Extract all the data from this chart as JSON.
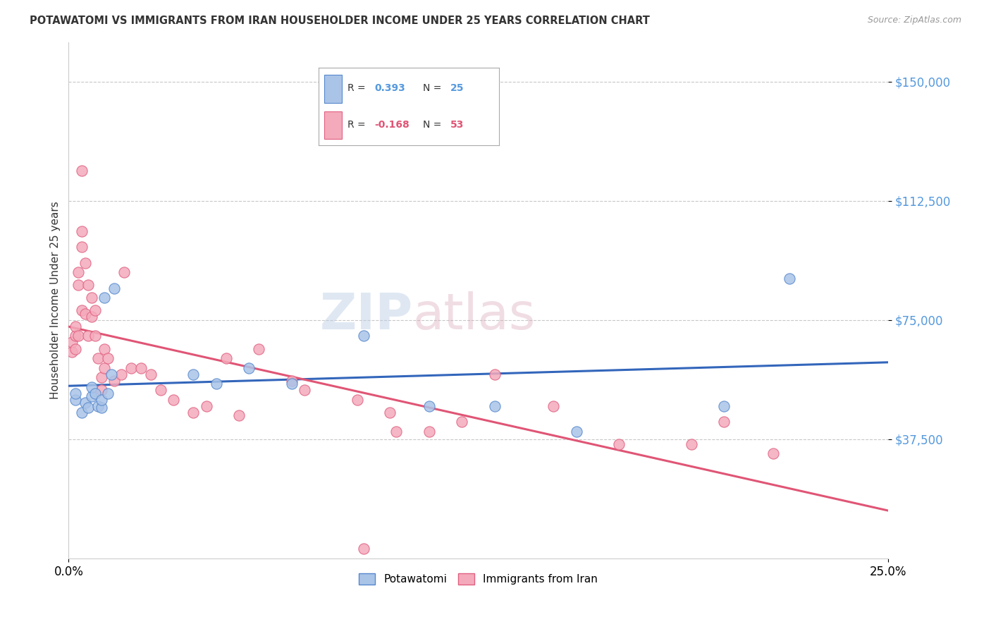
{
  "title": "POTAWATOMI VS IMMIGRANTS FROM IRAN HOUSEHOLDER INCOME UNDER 25 YEARS CORRELATION CHART",
  "source": "Source: ZipAtlas.com",
  "ylabel": "Householder Income Under 25 years",
  "xlim": [
    0.0,
    0.25
  ],
  "ylim": [
    0,
    162500
  ],
  "xtick_labels": [
    "0.0%",
    "25.0%"
  ],
  "ytick_labels": [
    "$37,500",
    "$75,000",
    "$112,500",
    "$150,000"
  ],
  "ytick_values": [
    37500,
    75000,
    112500,
    150000
  ],
  "background_color": "#ffffff",
  "grid_color": "#c8c8c8",
  "blue_color": "#aac4e8",
  "pink_color": "#f4aabb",
  "blue_edge_color": "#5588cc",
  "pink_edge_color": "#e06080",
  "blue_line_color": "#3366bb",
  "pink_line_color": "#e05575",
  "tick_color": "#5599dd",
  "R_blue": 0.393,
  "N_blue": 25,
  "R_pink": -0.168,
  "N_pink": 53,
  "blue_x": [
    0.002,
    0.002,
    0.004,
    0.005,
    0.006,
    0.007,
    0.007,
    0.008,
    0.009,
    0.01,
    0.01,
    0.011,
    0.012,
    0.013,
    0.014,
    0.038,
    0.045,
    0.055,
    0.068,
    0.09,
    0.11,
    0.13,
    0.155,
    0.2,
    0.22
  ],
  "blue_y": [
    50000,
    52000,
    46000,
    49000,
    47500,
    51000,
    54000,
    52000,
    48000,
    47500,
    50000,
    82000,
    52000,
    58000,
    85000,
    58000,
    55000,
    60000,
    55000,
    70000,
    48000,
    48000,
    40000,
    48000,
    88000
  ],
  "pink_x": [
    0.001,
    0.001,
    0.002,
    0.002,
    0.002,
    0.003,
    0.003,
    0.003,
    0.004,
    0.004,
    0.004,
    0.004,
    0.005,
    0.005,
    0.006,
    0.006,
    0.007,
    0.007,
    0.008,
    0.008,
    0.009,
    0.01,
    0.01,
    0.011,
    0.011,
    0.012,
    0.014,
    0.016,
    0.017,
    0.019,
    0.022,
    0.025,
    0.028,
    0.032,
    0.038,
    0.042,
    0.048,
    0.052,
    0.058,
    0.068,
    0.072,
    0.088,
    0.09,
    0.098,
    0.1,
    0.11,
    0.12,
    0.13,
    0.148,
    0.168,
    0.19,
    0.2,
    0.215
  ],
  "pink_y": [
    65000,
    68000,
    70000,
    66000,
    73000,
    90000,
    86000,
    70000,
    98000,
    122000,
    103000,
    78000,
    93000,
    77000,
    86000,
    70000,
    82000,
    76000,
    78000,
    70000,
    63000,
    53000,
    57000,
    60000,
    66000,
    63000,
    56000,
    58000,
    90000,
    60000,
    60000,
    58000,
    53000,
    50000,
    46000,
    48000,
    63000,
    45000,
    66000,
    56000,
    53000,
    50000,
    3000,
    46000,
    40000,
    40000,
    43000,
    58000,
    48000,
    36000,
    36000,
    43000,
    33000
  ]
}
